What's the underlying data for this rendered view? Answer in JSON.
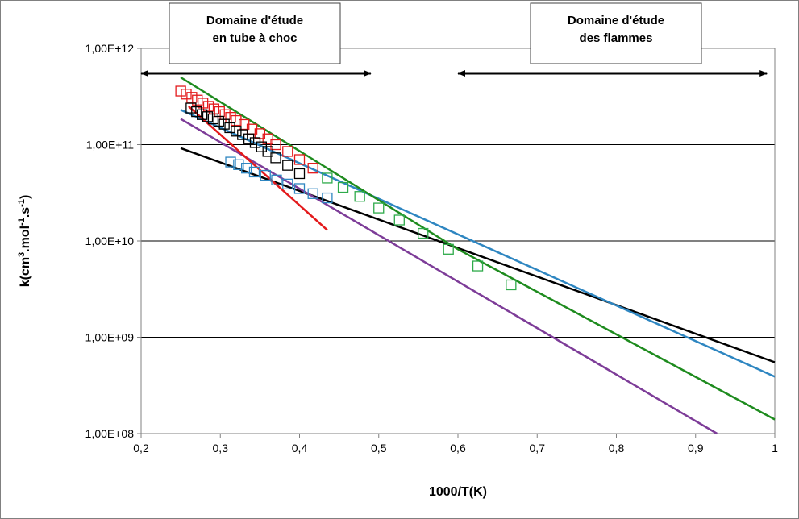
{
  "chart_data": {
    "type": "scatter",
    "title": "",
    "xlabel": "1000/T(K)",
    "ylabel": "k(cm³.mol⁻¹.s⁻¹)",
    "ylabel_parts": {
      "base": "k(cm",
      "sup1": "3",
      "mid1": ".mol",
      "sup2": "-1",
      "mid2": ".s",
      "sup3": "-1",
      "end": ")"
    },
    "xlim": [
      0.2,
      1.0
    ],
    "ylim": [
      100000000.0,
      1000000000000.0
    ],
    "yscale": "log",
    "grid": "horizontal major gridlines",
    "legend": "none",
    "x_ticks": [
      "0,2",
      "0,3",
      "0,4",
      "0,5",
      "0,6",
      "0,7",
      "0,8",
      "0,9",
      "1"
    ],
    "x_tick_values": [
      0.2,
      0.3,
      0.4,
      0.5,
      0.6,
      0.7,
      0.8,
      0.9,
      1.0
    ],
    "y_ticks": [
      "1,00E+08",
      "1,00E+09",
      "1,00E+10",
      "1,00E+11",
      "1,00E+12"
    ],
    "y_tick_values": [
      100000000.0,
      1000000000.0,
      10000000000.0,
      100000000000.0,
      1000000000000.0
    ],
    "line_series": [
      {
        "color": "#000000",
        "x": [
          0.25,
          1.0
        ],
        "y": [
          92000000000.0,
          550000000.0
        ]
      },
      {
        "color": "#2E86C1",
        "x": [
          0.25,
          1.0
        ],
        "y": [
          230000000000.0,
          390000000.0
        ]
      },
      {
        "color": "#1E8B1E",
        "x": [
          0.25,
          0.6,
          1.0
        ],
        "y": [
          500000000000.0,
          8200000000.0,
          140000000.0
        ]
      },
      {
        "color": "#7D3C98",
        "x": [
          0.25,
          0.927
        ],
        "y": [
          185000000000.0,
          100000000.0
        ]
      },
      {
        "color": "#E31A1C",
        "x": [
          0.26,
          0.435
        ],
        "y": [
          250000000000.0,
          13000000000.0
        ]
      }
    ],
    "scatter_series": [
      {
        "color": "#E31A1C",
        "x": [
          0.25,
          0.257,
          0.264,
          0.271,
          0.278,
          0.285,
          0.292,
          0.299,
          0.306,
          0.313,
          0.32,
          0.33,
          0.34,
          0.35,
          0.36,
          0.37,
          0.385,
          0.4,
          0.417
        ],
        "y": [
          360000000000.0,
          335000000000.0,
          310000000000.0,
          290000000000.0,
          270000000000.0,
          250000000000.0,
          235000000000.0,
          220000000000.0,
          205000000000.0,
          192000000000.0,
          178000000000.0,
          162000000000.0,
          145000000000.0,
          130000000000.0,
          115000000000.0,
          100000000000.0,
          85000000000.0,
          70000000000.0,
          57000000000.0
        ]
      },
      {
        "color": "#000000",
        "x": [
          0.263,
          0.27,
          0.277,
          0.284,
          0.291,
          0.298,
          0.305,
          0.312,
          0.32,
          0.328,
          0.336,
          0.344,
          0.352,
          0.36,
          0.37,
          0.385,
          0.4
        ],
        "y": [
          240000000000.0,
          220000000000.0,
          205000000000.0,
          195000000000.0,
          185000000000.0,
          175000000000.0,
          163000000000.0,
          150000000000.0,
          138000000000.0,
          127000000000.0,
          115000000000.0,
          105000000000.0,
          95000000000.0,
          85000000000.0,
          73000000000.0,
          61000000000.0,
          50000000000.0
        ]
      },
      {
        "color": "#2E86C1",
        "x": [
          0.313,
          0.323,
          0.333,
          0.343,
          0.357,
          0.371,
          0.385,
          0.4,
          0.417,
          0.435
        ],
        "y": [
          66000000000.0,
          62000000000.0,
          57000000000.0,
          52000000000.0,
          48000000000.0,
          43000000000.0,
          39000000000.0,
          35000000000.0,
          31000000000.0,
          28000000000.0
        ]
      },
      {
        "color": "#2EAA4A",
        "x": [
          0.435,
          0.455,
          0.476,
          0.5,
          0.526,
          0.556,
          0.588,
          0.625,
          0.667
        ],
        "y": [
          45000000000.0,
          36000000000.0,
          29000000000.0,
          22000000000.0,
          16500000000.0,
          12000000000.0,
          8200000000.0,
          5500000000.0,
          3500000000.0
        ]
      }
    ],
    "annotations": [
      {
        "lines": [
          "Domaine d'étude",
          "en tube à choc"
        ],
        "range_x": [
          0.2,
          0.49
        ]
      },
      {
        "lines": [
          "Domaine d'étude",
          "des flammes"
        ],
        "range_x": [
          0.6,
          0.99
        ]
      }
    ]
  }
}
